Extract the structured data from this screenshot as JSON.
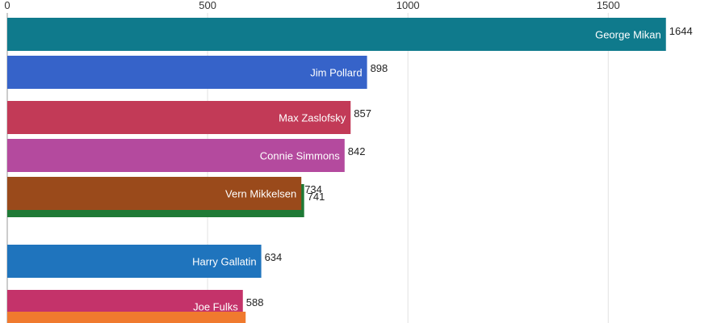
{
  "chart_data": {
    "type": "bar",
    "orientation": "horizontal",
    "xlim": [
      0,
      1750
    ],
    "x_ticks": [
      0,
      500,
      1000,
      1500
    ],
    "grid": true,
    "bars": [
      {
        "name": "George Mikan",
        "value": 1644,
        "color": "#0f7a8c"
      },
      {
        "name": "Jim Pollard",
        "value": 898,
        "color": "#3663c9"
      },
      {
        "name": "Max Zaslofsky",
        "value": 857,
        "color": "#c23a57"
      },
      {
        "name": "Connie Simmons",
        "value": 842,
        "color": "#b44a9e"
      },
      {
        "name": "",
        "value": 741,
        "color": "#1f7a36"
      },
      {
        "name": "Vern Mikkelsen",
        "value": 734,
        "color": "#9a4a1b"
      },
      {
        "name": "Harry Gallatin",
        "value": 634,
        "color": "#1f74bd"
      },
      {
        "name": "Joe Fulks",
        "value": 588,
        "color": "#c4336a"
      },
      {
        "name": "",
        "value": 595,
        "color": "#f07a2e"
      }
    ]
  }
}
